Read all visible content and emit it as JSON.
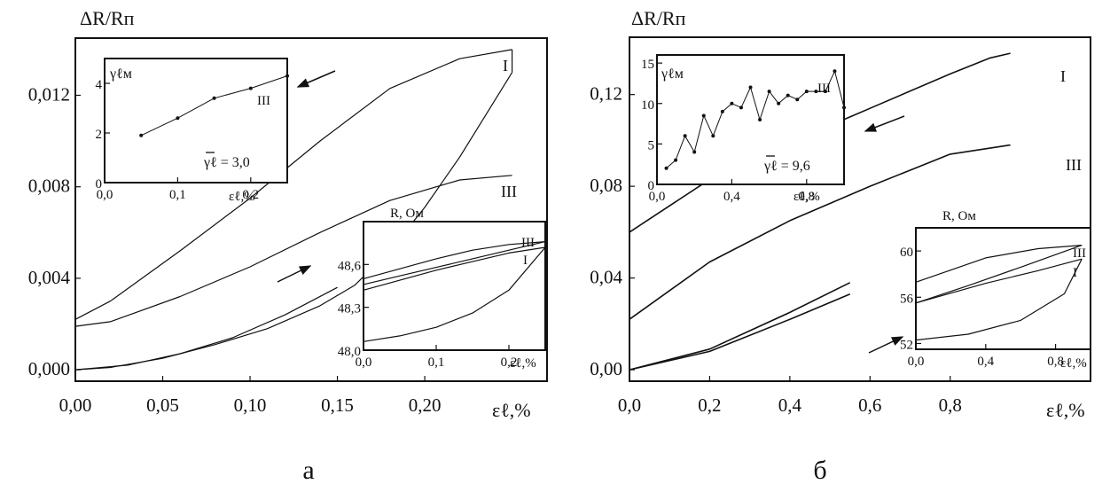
{
  "figure": {
    "panels": [
      {
        "letter": "а",
        "y_label": "ΔR/Rп",
        "x_label": "εℓ,%",
        "x_ticks": [
          "0,00",
          "0,05",
          "0,10",
          "0,15",
          "0,20"
        ],
        "y_ticks": [
          "0,000",
          "0,004",
          "0,008",
          "0,012"
        ],
        "roman_labels": [
          "I",
          "III"
        ],
        "inset_gamma": {
          "y_label": "γℓм",
          "x_label": "εℓ,%",
          "x_ticks": [
            "0,0",
            "0,1",
            "0,2"
          ],
          "y_ticks": [
            "0",
            "2",
            "4"
          ],
          "annotation": "γℓ = 3,0",
          "roman_label": "III"
        },
        "inset_r": {
          "y_label": "R, Ом",
          "x_label": "εℓ,%",
          "x_ticks": [
            "0,0",
            "0,1",
            "0,2"
          ],
          "y_ticks": [
            "48,0",
            "48,3",
            "48,6"
          ],
          "roman_labels": [
            "III",
            "I"
          ]
        }
      },
      {
        "letter": "б",
        "y_label": "ΔR/Rп",
        "x_label": "εℓ,%",
        "x_ticks": [
          "0,0",
          "0,2",
          "0,4",
          "0,6",
          "0,8"
        ],
        "y_ticks": [
          "0,00",
          "0,04",
          "0,08",
          "0,12"
        ],
        "roman_labels": [
          "I",
          "III"
        ],
        "inset_gamma": {
          "y_label": "γℓм",
          "x_label": "εℓ,%",
          "x_ticks": [
            "0,0",
            "0,4",
            "0,8"
          ],
          "y_ticks": [
            "0",
            "5",
            "10",
            "15"
          ],
          "annotation": "γℓ = 9,6",
          "roman_label": "III"
        },
        "inset_r": {
          "y_label": "R, Ом",
          "x_label": "εℓ,%",
          "x_ticks": [
            "0,0",
            "0,4",
            "0,8"
          ],
          "y_ticks": [
            "52",
            "56",
            "60"
          ],
          "roman_labels": [
            "III",
            "I"
          ]
        }
      }
    ]
  },
  "chart_data": [
    {
      "type": "line",
      "panel": "а main",
      "xlabel": "εℓ,%",
      "ylabel": "ΔR/Rп",
      "xlim": [
        0,
        0.27
      ],
      "ylim": [
        -0.0005,
        0.0145
      ],
      "series": [
        {
          "name": "I",
          "x": [
            0,
            0.02,
            0.05,
            0.08,
            0.11,
            0.14,
            0.16,
            0.18,
            0.2,
            0.22,
            0.25
          ],
          "y": [
            0,
            0.0001,
            0.0005,
            0.0011,
            0.0018,
            0.0028,
            0.0037,
            0.0052,
            0.0071,
            0.0093,
            0.013
          ]
        },
        {
          "name": "I",
          "x": [
            0.25,
            0.25
          ],
          "y": [
            0.013,
            0.014
          ]
        },
        {
          "name": "I",
          "x": [
            0.25,
            0.22,
            0.18,
            0.14,
            0.1,
            0.06,
            0.02,
            0.0
          ],
          "y": [
            0.014,
            0.0136,
            0.0123,
            0.01,
            0.0075,
            0.0052,
            0.003,
            0.0022
          ]
        },
        {
          "name": "III",
          "x": [
            0,
            0.03,
            0.06,
            0.09,
            0.12,
            0.15
          ],
          "y": [
            0,
            0.0002,
            0.0007,
            0.0014,
            0.0024,
            0.0036
          ]
        },
        {
          "name": "III",
          "x": [
            0.25,
            0.22,
            0.18,
            0.14,
            0.1,
            0.06,
            0.02,
            0.0
          ],
          "y": [
            0.0085,
            0.0083,
            0.0074,
            0.006,
            0.0045,
            0.0032,
            0.0021,
            0.0019
          ]
        }
      ]
    },
    {
      "type": "line",
      "panel": "а inset γℓм",
      "xlabel": "εℓ,%",
      "ylabel": "γℓм",
      "xlim": [
        0,
        0.25
      ],
      "ylim": [
        0,
        5
      ],
      "series": [
        {
          "name": "III",
          "x": [
            0.05,
            0.1,
            0.15,
            0.2,
            0.25
          ],
          "y": [
            1.9,
            2.6,
            3.4,
            3.8,
            4.3
          ]
        }
      ]
    },
    {
      "type": "line",
      "panel": "а inset R",
      "xlabel": "εℓ,%",
      "ylabel": "R, Ом",
      "xlim": [
        0,
        0.25
      ],
      "ylim": [
        48.0,
        48.9
      ],
      "series": [
        {
          "name": "I",
          "x": [
            0,
            0.05,
            0.1,
            0.15,
            0.2,
            0.25
          ],
          "y": [
            48.06,
            48.1,
            48.16,
            48.26,
            48.42,
            48.72
          ]
        },
        {
          "name": "I",
          "x": [
            0.25,
            0.2,
            0.15,
            0.1,
            0.05,
            0.0
          ],
          "y": [
            48.72,
            48.68,
            48.62,
            48.56,
            48.49,
            48.42
          ]
        },
        {
          "name": "III",
          "x": [
            0,
            0.05,
            0.1,
            0.15,
            0.2,
            0.25
          ],
          "y": [
            48.46,
            48.52,
            48.58,
            48.64,
            48.7,
            48.76
          ]
        },
        {
          "name": "III",
          "x": [
            0.25,
            0.2,
            0.15,
            0.1,
            0.05,
            0.0
          ],
          "y": [
            48.76,
            48.74,
            48.7,
            48.64,
            48.57,
            48.5
          ]
        }
      ]
    },
    {
      "type": "line",
      "panel": "б main",
      "xlabel": "εℓ,%",
      "ylabel": "ΔR/Rп",
      "xlim": [
        0,
        1.15
      ],
      "ylim": [
        -0.005,
        0.145
      ],
      "series": [
        {
          "name": "I",
          "x": [
            0,
            0.2,
            0.4,
            0.55
          ],
          "y": [
            0,
            0.009,
            0.025,
            0.038
          ]
        },
        {
          "name": "I",
          "x": [
            0.95,
            0.9,
            0.8,
            0.6,
            0.4,
            0.2,
            0.0
          ],
          "y": [
            0.138,
            0.136,
            0.129,
            0.114,
            0.099,
            0.083,
            0.06
          ]
        },
        {
          "name": "III",
          "x": [
            0,
            0.2,
            0.4,
            0.55
          ],
          "y": [
            0,
            0.008,
            0.022,
            0.033
          ]
        },
        {
          "name": "III",
          "x": [
            0.95,
            0.8,
            0.6,
            0.4,
            0.2,
            0.0
          ],
          "y": [
            0.098,
            0.094,
            0.08,
            0.065,
            0.047,
            0.022
          ]
        }
      ]
    },
    {
      "type": "line",
      "panel": "б inset γℓм",
      "xlabel": "εℓ,%",
      "ylabel": "γℓм",
      "xlim": [
        0,
        1.0
      ],
      "ylim": [
        0,
        16
      ],
      "series": [
        {
          "name": "III",
          "x": [
            0.05,
            0.1,
            0.15,
            0.2,
            0.25,
            0.3,
            0.35,
            0.4,
            0.45,
            0.5,
            0.55,
            0.6,
            0.65,
            0.7,
            0.75,
            0.8,
            0.85,
            0.9,
            0.95,
            1.0
          ],
          "y": [
            2,
            3,
            6,
            4,
            8.5,
            6,
            9,
            10,
            9.5,
            12,
            8,
            11.5,
            10,
            11,
            10.5,
            11.5,
            11.5,
            11.5,
            14,
            9.5
          ]
        }
      ]
    },
    {
      "type": "line",
      "panel": "б inset R",
      "xlabel": "εℓ,%",
      "ylabel": "R, Ом",
      "xlim": [
        0,
        1.0
      ],
      "ylim": [
        51.5,
        62
      ],
      "series": [
        {
          "name": "I",
          "x": [
            0,
            0.3,
            0.6,
            0.85,
            0.95
          ],
          "y": [
            52.3,
            52.8,
            54,
            56.3,
            59.3
          ]
        },
        {
          "name": "I",
          "x": [
            0.95,
            0.7,
            0.4,
            0.0
          ],
          "y": [
            59.3,
            58.3,
            57.2,
            55.5
          ]
        },
        {
          "name": "III",
          "x": [
            0,
            0.3,
            0.6,
            0.95
          ],
          "y": [
            55.5,
            57,
            58.6,
            60.5
          ]
        },
        {
          "name": "III",
          "x": [
            0.95,
            0.7,
            0.4,
            0.0
          ],
          "y": [
            60.5,
            60.2,
            59.4,
            57.3
          ]
        }
      ]
    }
  ]
}
